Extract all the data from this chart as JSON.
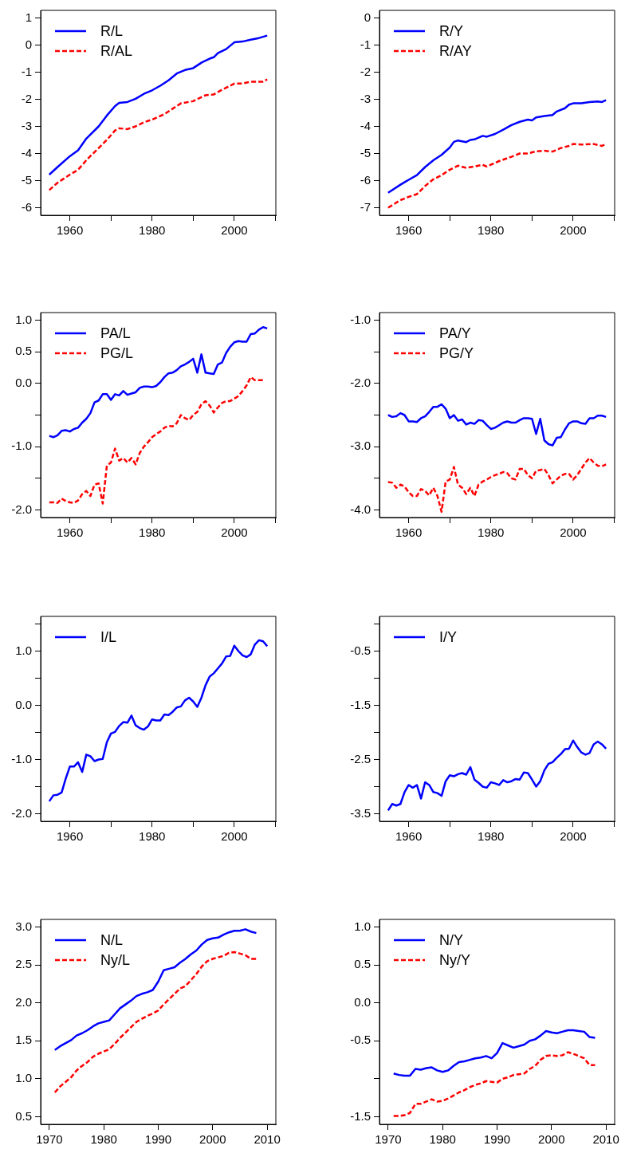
{
  "chart_data": [
    {
      "type": "line",
      "legend": "top left",
      "xlim": [
        1952.9,
        2010.1
      ],
      "ylim": [
        -6.28,
        1.28
      ],
      "xticks": [
        1960,
        {
          "value": 1970,
          "label": null
        },
        1980,
        {
          "value": 1990,
          "label": null
        },
        2000,
        {
          "value": 2010,
          "label": null
        }
      ],
      "yticks": [
        1,
        0,
        -1,
        -2,
        -3,
        -4,
        -5,
        -6
      ],
      "series": [
        {
          "name": "R/L",
          "color": "#0000ff",
          "line_style": "solid",
          "x": [
            1955,
            1957,
            1960,
            1962,
            1964,
            1967,
            1969,
            1971,
            1972,
            1974,
            1976,
            1978,
            1980,
            1982,
            1984,
            1986,
            1988,
            1990,
            1992,
            1994,
            1995,
            1996,
            1998,
            2000,
            2002,
            2004,
            2006,
            2008
          ],
          "values": [
            -4.78,
            -4.5,
            -4.1,
            -3.88,
            -3.45,
            -3.0,
            -2.6,
            -2.25,
            -2.13,
            -2.1,
            -1.98,
            -1.8,
            -1.67,
            -1.5,
            -1.3,
            -1.05,
            -0.92,
            -0.85,
            -0.65,
            -0.5,
            -0.45,
            -0.3,
            -0.15,
            0.1,
            0.13,
            0.2,
            0.26,
            0.35
          ]
        },
        {
          "name": "R/AL",
          "color": "#ff0000",
          "line_style": "dashed",
          "x": [
            1955,
            1957,
            1960,
            1962,
            1964,
            1967,
            1969,
            1971,
            1972,
            1974,
            1976,
            1978,
            1980,
            1983,
            1985,
            1987,
            1990,
            1992,
            1993,
            1995,
            1997,
            1999,
            2000,
            2002,
            2004,
            2007,
            2008
          ],
          "values": [
            -5.35,
            -5.08,
            -4.78,
            -4.6,
            -4.25,
            -3.8,
            -3.5,
            -3.15,
            -3.07,
            -3.1,
            -3.0,
            -2.85,
            -2.75,
            -2.55,
            -2.35,
            -2.15,
            -2.07,
            -1.92,
            -1.85,
            -1.82,
            -1.65,
            -1.5,
            -1.42,
            -1.42,
            -1.35,
            -1.35,
            -1.27
          ]
        }
      ]
    },
    {
      "type": "line",
      "legend": "top left",
      "xlim": [
        1952.9,
        2010.1
      ],
      "ylim": [
        -7.28,
        0.28
      ],
      "xticks": [
        1960,
        {
          "value": 1970,
          "label": null
        },
        1980,
        {
          "value": 1990,
          "label": null
        },
        2000,
        {
          "value": 2010,
          "label": null
        }
      ],
      "yticks": [
        0,
        -1,
        -2,
        -3,
        -4,
        -5,
        -6,
        -7
      ],
      "series": [
        {
          "name": "R/Y",
          "color": "#0000ff",
          "line_style": "solid",
          "x": [
            1955,
            1958,
            1960,
            1962,
            1964,
            1966,
            1968,
            1970,
            1971,
            1972,
            1974,
            1975,
            1976,
            1978,
            1979,
            1981,
            1983,
            1985,
            1987,
            1989,
            1990,
            1991,
            1993,
            1995,
            1996,
            1998,
            1999,
            2000,
            2002,
            2004,
            2006,
            2007,
            2008
          ],
          "values": [
            -6.45,
            -6.15,
            -5.97,
            -5.8,
            -5.5,
            -5.25,
            -5.05,
            -4.78,
            -4.57,
            -4.52,
            -4.58,
            -4.5,
            -4.48,
            -4.35,
            -4.38,
            -4.28,
            -4.12,
            -3.95,
            -3.83,
            -3.75,
            -3.78,
            -3.67,
            -3.62,
            -3.58,
            -3.45,
            -3.33,
            -3.2,
            -3.15,
            -3.15,
            -3.1,
            -3.08,
            -3.1,
            -3.03
          ]
        },
        {
          "name": "R/AY",
          "color": "#ff0000",
          "line_style": "dashed",
          "x": [
            1955,
            1958,
            1960,
            1962,
            1964,
            1966,
            1968,
            1970,
            1972,
            1974,
            1976,
            1978,
            1979,
            1982,
            1985,
            1987,
            1989,
            1991,
            1993,
            1995,
            1997,
            1999,
            2000,
            2002,
            2005,
            2007,
            2008
          ],
          "values": [
            -7.0,
            -6.72,
            -6.6,
            -6.5,
            -6.2,
            -5.95,
            -5.8,
            -5.6,
            -5.45,
            -5.53,
            -5.48,
            -5.42,
            -5.48,
            -5.28,
            -5.12,
            -5.0,
            -5.0,
            -4.92,
            -4.9,
            -4.93,
            -4.8,
            -4.72,
            -4.65,
            -4.67,
            -4.65,
            -4.72,
            -4.65
          ]
        }
      ]
    },
    {
      "type": "line",
      "legend": "top left",
      "xlim": [
        1952.9,
        2010.1
      ],
      "ylim": [
        -2.12,
        1.12
      ],
      "xticks": [
        1960,
        {
          "value": 1970,
          "label": null
        },
        1980,
        {
          "value": 1990,
          "label": null
        },
        2000,
        {
          "value": 2010,
          "label": null
        }
      ],
      "yticks": [
        {
          "value": 1,
          "label": "1.0"
        },
        0.5,
        {
          "value": 0,
          "label": "0.0"
        },
        {
          "value": -0.5,
          "label": null
        },
        {
          "value": -1,
          "label": "-1.0"
        },
        {
          "value": -1.5,
          "label": null
        },
        {
          "value": -2,
          "label": "-2.0"
        }
      ],
      "x": [
        1955,
        1956,
        1957,
        1958,
        1959,
        1960,
        1961,
        1962,
        1963,
        1964,
        1965,
        1966,
        1967,
        1968,
        1969,
        1970,
        1971,
        1972,
        1973,
        1974,
        1975,
        1976,
        1977,
        1978,
        1979,
        1980,
        1981,
        1982,
        1983,
        1984,
        1985,
        1986,
        1987,
        1988,
        1989,
        1990,
        1991,
        1992,
        1993,
        1994,
        1995,
        1996,
        1997,
        1998,
        1999,
        2000,
        2001,
        2002,
        2003,
        2004,
        2005,
        2006,
        2007,
        2008
      ],
      "series": [
        {
          "name": "PA/L",
          "color": "#0000ff",
          "line_style": "solid",
          "values": [
            -0.83,
            -0.85,
            -0.82,
            -0.75,
            -0.74,
            -0.76,
            -0.72,
            -0.7,
            -0.62,
            -0.56,
            -0.47,
            -0.3,
            -0.27,
            -0.17,
            -0.17,
            -0.26,
            -0.17,
            -0.19,
            -0.12,
            -0.18,
            -0.16,
            -0.14,
            -0.07,
            -0.05,
            -0.05,
            -0.06,
            -0.04,
            0.02,
            0.1,
            0.16,
            0.17,
            0.21,
            0.27,
            0.3,
            0.34,
            0.39,
            0.17,
            0.46,
            0.17,
            0.16,
            0.15,
            0.3,
            0.33,
            0.48,
            0.58,
            0.65,
            0.67,
            0.66,
            0.66,
            0.78,
            0.79,
            0.85,
            0.89,
            0.87
          ]
        },
        {
          "name": "PG/L",
          "color": "#ff0000",
          "line_style": "dashed",
          "values": [
            -1.88,
            -1.88,
            -1.89,
            -1.82,
            -1.86,
            -1.88,
            -1.89,
            -1.85,
            -1.75,
            -1.7,
            -1.78,
            -1.6,
            -1.58,
            -1.9,
            -1.3,
            -1.25,
            -1.03,
            -1.22,
            -1.18,
            -1.25,
            -1.18,
            -1.28,
            -1.1,
            -1.0,
            -0.93,
            -0.85,
            -0.8,
            -0.76,
            -0.7,
            -0.67,
            -0.68,
            -0.63,
            -0.5,
            -0.55,
            -0.58,
            -0.5,
            -0.45,
            -0.33,
            -0.28,
            -0.35,
            -0.46,
            -0.38,
            -0.31,
            -0.28,
            -0.28,
            -0.24,
            -0.2,
            -0.12,
            -0.03,
            0.1,
            0.05,
            0.05,
            0.05,
            null
          ]
        }
      ]
    },
    {
      "type": "line",
      "legend": "top left",
      "xlim": [
        1952.9,
        2010.1
      ],
      "ylim": [
        -4.12,
        -0.88
      ],
      "xticks": [
        1960,
        {
          "value": 1970,
          "label": null
        },
        1980,
        {
          "value": 1990,
          "label": null
        },
        2000,
        {
          "value": 2010,
          "label": null
        }
      ],
      "yticks": [
        {
          "value": -1,
          "label": "-1.0"
        },
        {
          "value": -1.5,
          "label": null
        },
        {
          "value": -2,
          "label": "-2.0"
        },
        {
          "value": -2.5,
          "label": null
        },
        {
          "value": -3,
          "label": "-3.0"
        },
        {
          "value": -3.5,
          "label": null
        },
        {
          "value": -4,
          "label": "-4.0"
        }
      ],
      "x": [
        1955,
        1956,
        1957,
        1958,
        1959,
        1960,
        1961,
        1962,
        1963,
        1964,
        1965,
        1966,
        1967,
        1968,
        1969,
        1970,
        1971,
        1972,
        1973,
        1974,
        1975,
        1976,
        1977,
        1978,
        1979,
        1980,
        1981,
        1982,
        1983,
        1984,
        1985,
        1986,
        1987,
        1988,
        1989,
        1990,
        1991,
        1992,
        1993,
        1994,
        1995,
        1996,
        1997,
        1998,
        1999,
        2000,
        2001,
        2002,
        2003,
        2004,
        2005,
        2006,
        2007,
        2008
      ],
      "series": [
        {
          "name": "PA/Y",
          "color": "#0000ff",
          "line_style": "solid",
          "values": [
            -2.5,
            -2.53,
            -2.52,
            -2.47,
            -2.5,
            -2.6,
            -2.6,
            -2.61,
            -2.55,
            -2.52,
            -2.45,
            -2.37,
            -2.37,
            -2.33,
            -2.4,
            -2.55,
            -2.5,
            -2.59,
            -2.57,
            -2.65,
            -2.62,
            -2.64,
            -2.58,
            -2.59,
            -2.66,
            -2.72,
            -2.7,
            -2.66,
            -2.62,
            -2.6,
            -2.62,
            -2.62,
            -2.58,
            -2.55,
            -2.55,
            -2.56,
            -2.8,
            -2.56,
            -2.9,
            -2.96,
            -2.98,
            -2.86,
            -2.85,
            -2.73,
            -2.63,
            -2.6,
            -2.6,
            -2.63,
            -2.64,
            -2.55,
            -2.55,
            -2.51,
            -2.51,
            -2.53
          ]
        },
        {
          "name": "PG/Y",
          "color": "#ff0000",
          "line_style": "dashed",
          "values": [
            -3.56,
            -3.57,
            -3.65,
            -3.6,
            -3.63,
            -3.72,
            -3.78,
            -3.78,
            -3.67,
            -3.7,
            -3.77,
            -3.65,
            -3.78,
            -4.03,
            -3.55,
            -3.52,
            -3.32,
            -3.6,
            -3.65,
            -3.75,
            -3.65,
            -3.78,
            -3.6,
            -3.55,
            -3.52,
            -3.48,
            -3.45,
            -3.43,
            -3.4,
            -3.42,
            -3.5,
            -3.52,
            -3.35,
            -3.35,
            -3.45,
            -3.5,
            -3.38,
            -3.37,
            -3.35,
            -3.45,
            -3.58,
            -3.52,
            -3.46,
            -3.43,
            -3.43,
            -3.52,
            -3.45,
            -3.35,
            -3.25,
            -3.18,
            -3.25,
            -3.3,
            -3.31,
            -3.28
          ]
        }
      ]
    },
    {
      "type": "line",
      "legend": "top left",
      "xlim": [
        1952.9,
        2010.1
      ],
      "ylim": [
        -2.14,
        1.64
      ],
      "xticks": [
        1960,
        {
          "value": 1970,
          "label": null
        },
        1980,
        {
          "value": 1990,
          "label": null
        },
        2000,
        {
          "value": 2010,
          "label": null
        }
      ],
      "yticks": [
        {
          "value": 1.5,
          "label": null
        },
        {
          "value": 1,
          "label": "1.0"
        },
        {
          "value": 0.5,
          "label": null
        },
        {
          "value": 0,
          "label": "0.0"
        },
        {
          "value": -0.5,
          "label": null
        },
        {
          "value": -1,
          "label": "-1.0"
        },
        {
          "value": -1.5,
          "label": null
        },
        {
          "value": -2,
          "label": "-2.0"
        }
      ],
      "x": [
        1955,
        1956,
        1957,
        1958,
        1959,
        1960,
        1961,
        1962,
        1963,
        1964,
        1965,
        1966,
        1967,
        1968,
        1969,
        1970,
        1971,
        1972,
        1973,
        1974,
        1975,
        1976,
        1977,
        1978,
        1979,
        1980,
        1981,
        1982,
        1983,
        1984,
        1985,
        1986,
        1987,
        1988,
        1989,
        1990,
        1991,
        1992,
        1993,
        1994,
        1995,
        1996,
        1997,
        1998,
        1999,
        2000,
        2001,
        2002,
        2003,
        2004,
        2005,
        2006,
        2007,
        2008
      ],
      "series": [
        {
          "name": "I/L",
          "color": "#0000ff",
          "line_style": "solid",
          "values": [
            -1.77,
            -1.66,
            -1.65,
            -1.61,
            -1.35,
            -1.13,
            -1.13,
            -1.05,
            -1.23,
            -0.91,
            -0.94,
            -1.03,
            -1.0,
            -0.99,
            -0.68,
            -0.52,
            -0.49,
            -0.38,
            -0.31,
            -0.32,
            -0.19,
            -0.37,
            -0.42,
            -0.45,
            -0.39,
            -0.26,
            -0.28,
            -0.28,
            -0.17,
            -0.18,
            -0.12,
            -0.04,
            -0.02,
            0.09,
            0.14,
            0.07,
            -0.03,
            0.14,
            0.37,
            0.53,
            0.59,
            0.68,
            0.77,
            0.9,
            0.91,
            1.1,
            1.0,
            0.92,
            0.89,
            0.94,
            1.12,
            1.2,
            1.18,
            1.09
          ]
        }
      ]
    },
    {
      "type": "line",
      "legend": "top left",
      "xlim": [
        1952.9,
        2010.1
      ],
      "ylim": [
        -3.64,
        0.14
      ],
      "xticks": [
        1960,
        {
          "value": 1970,
          "label": null
        },
        1980,
        {
          "value": 1990,
          "label": null
        },
        2000,
        {
          "value": 2010,
          "label": null
        }
      ],
      "yticks": [
        {
          "value": 0,
          "label": null
        },
        -0.5,
        {
          "value": -1,
          "label": null
        },
        -1.5,
        {
          "value": -2,
          "label": null
        },
        -2.5,
        {
          "value": -3,
          "label": null
        },
        -3.5
      ],
      "x": [
        1955,
        1956,
        1957,
        1958,
        1959,
        1960,
        1961,
        1962,
        1963,
        1964,
        1965,
        1966,
        1967,
        1968,
        1969,
        1970,
        1971,
        1972,
        1973,
        1974,
        1975,
        1976,
        1977,
        1978,
        1979,
        1980,
        1981,
        1982,
        1983,
        1984,
        1985,
        1986,
        1987,
        1988,
        1989,
        1990,
        1991,
        1992,
        1993,
        1994,
        1995,
        1996,
        1997,
        1998,
        1999,
        2000,
        2001,
        2002,
        2003,
        2004,
        2005,
        2006,
        2007,
        2008
      ],
      "series": [
        {
          "name": "I/Y",
          "color": "#0000ff",
          "line_style": "solid",
          "values": [
            -3.44,
            -3.32,
            -3.35,
            -3.32,
            -3.1,
            -2.97,
            -3.02,
            -2.97,
            -3.22,
            -2.92,
            -2.97,
            -3.1,
            -3.12,
            -3.17,
            -2.9,
            -2.79,
            -2.81,
            -2.77,
            -2.75,
            -2.78,
            -2.64,
            -2.87,
            -2.93,
            -3.0,
            -3.02,
            -2.92,
            -2.94,
            -2.97,
            -2.88,
            -2.92,
            -2.9,
            -2.86,
            -2.87,
            -2.74,
            -2.75,
            -2.87,
            -3.0,
            -2.9,
            -2.7,
            -2.58,
            -2.55,
            -2.47,
            -2.4,
            -2.31,
            -2.3,
            -2.15,
            -2.27,
            -2.37,
            -2.41,
            -2.38,
            -2.22,
            -2.17,
            -2.22,
            -2.3
          ]
        }
      ]
    },
    {
      "type": "line",
      "legend": "top left",
      "xlim": [
        1968.4,
        2011.6
      ],
      "ylim": [
        0.4,
        3.1
      ],
      "xticks": [
        1970,
        1980,
        1990,
        2000,
        2010
      ],
      "yticks": [
        {
          "value": 3,
          "label": "3.0"
        },
        2.5,
        {
          "value": 2,
          "label": "2.0"
        },
        1.5,
        {
          "value": 1,
          "label": "1.0"
        },
        0.5
      ],
      "x": [
        1971,
        1972,
        1973,
        1974,
        1975,
        1976,
        1977,
        1978,
        1979,
        1980,
        1981,
        1982,
        1983,
        1984,
        1985,
        1986,
        1987,
        1988,
        1989,
        1990,
        1991,
        1992,
        1993,
        1994,
        1995,
        1996,
        1997,
        1998,
        1999,
        2000,
        2001,
        2002,
        2003,
        2004,
        2005,
        2006,
        2007,
        2008
      ],
      "series": [
        {
          "name": "N/L",
          "color": "#0000ff",
          "line_style": "solid",
          "values": [
            1.38,
            1.43,
            1.47,
            1.51,
            1.57,
            1.6,
            1.64,
            1.69,
            1.73,
            1.75,
            1.77,
            1.85,
            1.93,
            1.98,
            2.03,
            2.09,
            2.12,
            2.14,
            2.17,
            2.28,
            2.43,
            2.45,
            2.47,
            2.53,
            2.58,
            2.64,
            2.69,
            2.77,
            2.83,
            2.85,
            2.86,
            2.9,
            2.93,
            2.95,
            2.95,
            2.97,
            2.94,
            2.92
          ]
        },
        {
          "name": "Ny/L",
          "color": "#ff0000",
          "line_style": "dashed",
          "values": [
            0.82,
            0.9,
            0.96,
            1.02,
            1.11,
            1.17,
            1.22,
            1.29,
            1.33,
            1.36,
            1.39,
            1.46,
            1.54,
            1.61,
            1.68,
            1.75,
            1.79,
            1.83,
            1.86,
            1.9,
            1.98,
            2.05,
            2.12,
            2.19,
            2.22,
            2.3,
            2.38,
            2.48,
            2.55,
            2.58,
            2.6,
            2.62,
            2.66,
            2.67,
            2.65,
            2.63,
            2.58,
            2.58
          ]
        }
      ]
    },
    {
      "type": "line",
      "legend": "top left",
      "xlim": [
        1968.4,
        2011.6
      ],
      "ylim": [
        -1.6,
        1.1
      ],
      "xticks": [
        1970,
        1980,
        1990,
        2000,
        2010
      ],
      "yticks": [
        {
          "value": 1,
          "label": "1.0"
        },
        0.5,
        {
          "value": 0,
          "label": "0.0"
        },
        -0.5,
        {
          "value": -1,
          "label": null
        },
        -1.5
      ],
      "x": [
        1971,
        1972,
        1973,
        1974,
        1975,
        1976,
        1977,
        1978,
        1979,
        1980,
        1981,
        1982,
        1983,
        1984,
        1985,
        1986,
        1987,
        1988,
        1989,
        1990,
        1991,
        1992,
        1993,
        1994,
        1995,
        1996,
        1997,
        1998,
        1999,
        2000,
        2001,
        2002,
        2003,
        2004,
        2005,
        2006,
        2007,
        2008
      ],
      "series": [
        {
          "name": "N/Y",
          "color": "#0000ff",
          "line_style": "solid",
          "values": [
            -0.93,
            -0.95,
            -0.96,
            -0.96,
            -0.87,
            -0.88,
            -0.86,
            -0.85,
            -0.89,
            -0.91,
            -0.89,
            -0.83,
            -0.78,
            -0.77,
            -0.75,
            -0.73,
            -0.72,
            -0.7,
            -0.73,
            -0.66,
            -0.53,
            -0.56,
            -0.59,
            -0.57,
            -0.55,
            -0.5,
            -0.48,
            -0.43,
            -0.37,
            -0.39,
            -0.4,
            -0.38,
            -0.36,
            -0.36,
            -0.37,
            -0.38,
            -0.45,
            -0.46
          ]
        },
        {
          "name": "Ny/Y",
          "color": "#ff0000",
          "line_style": "dashed",
          "values": [
            -1.49,
            -1.49,
            -1.48,
            -1.45,
            -1.33,
            -1.33,
            -1.3,
            -1.27,
            -1.3,
            -1.29,
            -1.26,
            -1.22,
            -1.18,
            -1.15,
            -1.11,
            -1.08,
            -1.06,
            -1.03,
            -1.04,
            -1.05,
            -1.0,
            -0.98,
            -0.95,
            -0.94,
            -0.93,
            -0.87,
            -0.83,
            -0.75,
            -0.7,
            -0.69,
            -0.7,
            -0.69,
            -0.65,
            -0.67,
            -0.7,
            -0.73,
            -0.82,
            -0.82
          ]
        }
      ]
    }
  ]
}
